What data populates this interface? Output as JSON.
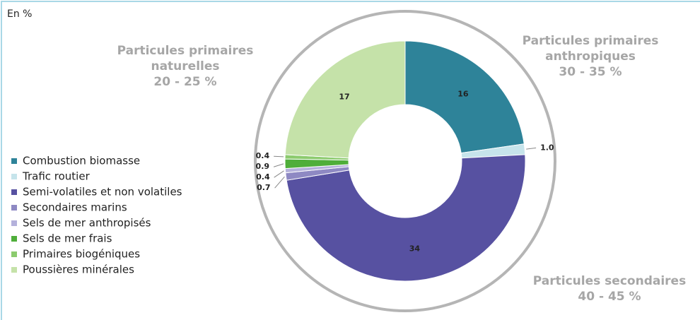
{
  "chart_data": {
    "type": "donut",
    "unit_label": "En %",
    "categories": [
      "Combustion biomasse",
      "Trafic routier",
      "Semi-volatiles et non volatiles",
      "Secondaires marins",
      "Sels de mer anthropisés",
      "Sels de mer frais",
      "Primaires biogéniques",
      "Poussières minérales"
    ],
    "values": [
      16,
      1.0,
      34,
      0.7,
      0.4,
      0.9,
      0.4,
      17
    ],
    "value_labels": [
      "16",
      "1.0",
      "34",
      "0.7",
      "0.4",
      "0.9",
      "0.4",
      "17"
    ],
    "colors": [
      "#2e8399",
      "#c6e4eb",
      "#5751a1",
      "#8e89c3",
      "#b4b1db",
      "#4fae3a",
      "#8ccb6e",
      "#c5e2a9"
    ],
    "legend": "left",
    "annotations": [
      {
        "lines": [
          "Particules primaires",
          "anthropiques",
          "30 - 35 %"
        ]
      },
      {
        "lines": [
          "Particules primaires",
          "naturelles",
          "20 - 25 %"
        ]
      },
      {
        "lines": [
          "Particules secondaires",
          "40 - 45 %"
        ]
      }
    ]
  }
}
